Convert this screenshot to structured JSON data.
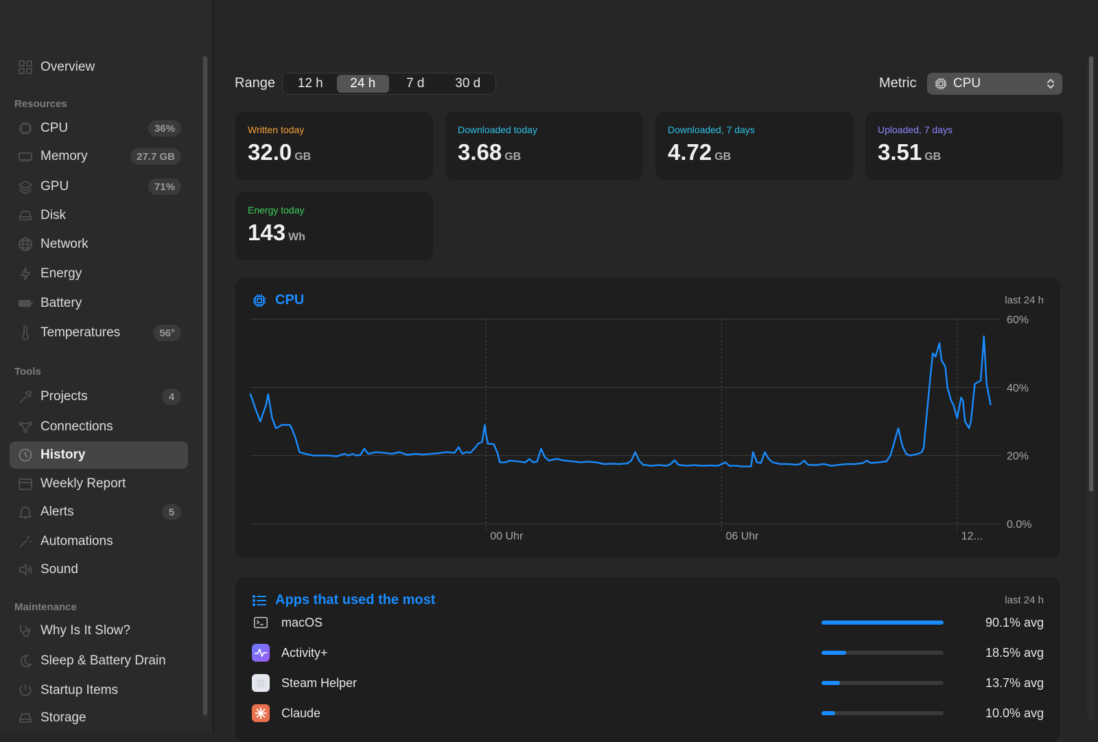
{
  "sidebar": {
    "items": [
      {
        "label": "Overview",
        "badge": "",
        "icon": "overview-icon"
      },
      {
        "label": "CPU",
        "badge": "36%",
        "icon": "cpu-icon"
      },
      {
        "label": "Memory",
        "badge": "27.7 GB",
        "icon": "memory-icon"
      },
      {
        "label": "GPU",
        "badge": "71%",
        "icon": "gpu-icon"
      },
      {
        "label": "Disk",
        "badge": "",
        "icon": "disk-icon"
      },
      {
        "label": "Network",
        "badge": "",
        "icon": "globe-icon"
      },
      {
        "label": "Energy",
        "badge": "",
        "icon": "bolt-icon"
      },
      {
        "label": "Battery",
        "badge": "",
        "icon": "battery-icon"
      },
      {
        "label": "Temperatures",
        "badge": "56°",
        "icon": "thermometer-icon"
      },
      {
        "label": "Projects",
        "badge": "4",
        "icon": "hammer-icon"
      },
      {
        "label": "Connections",
        "badge": "",
        "icon": "connections-icon"
      },
      {
        "label": "History",
        "badge": "",
        "icon": "clock-icon"
      },
      {
        "label": "Weekly Report",
        "badge": "",
        "icon": "calendar-icon"
      },
      {
        "label": "Alerts",
        "badge": "5",
        "icon": "bell-icon"
      },
      {
        "label": "Automations",
        "badge": "",
        "icon": "wand-icon"
      },
      {
        "label": "Sound",
        "badge": "",
        "icon": "speaker-icon"
      },
      {
        "label": "Why Is It Slow?",
        "badge": "",
        "icon": "stethoscope-icon"
      },
      {
        "label": "Sleep & Battery Drain",
        "badge": "",
        "icon": "moon-icon"
      },
      {
        "label": "Startup Items",
        "badge": "",
        "icon": "power-icon"
      },
      {
        "label": "Storage",
        "badge": "",
        "icon": "storage-icon"
      }
    ],
    "sections": {
      "resources": "Resources",
      "tools": "Tools",
      "maintenance": "Maintenance"
    },
    "selected": "History"
  },
  "toolbar": {
    "range_label": "Range",
    "range_options": [
      "12 h",
      "24 h",
      "7 d",
      "30 d"
    ],
    "range_selected": "24 h",
    "metric_label": "Metric",
    "metric_value": "CPU"
  },
  "stats": [
    {
      "title": "Written today",
      "value": "32.0",
      "unit": "GB",
      "color": "#f5a23c"
    },
    {
      "title": "Downloaded today",
      "value": "3.68",
      "unit": "GB",
      "color": "#2fc3e8"
    },
    {
      "title": "Downloaded, 7 days",
      "value": "4.72",
      "unit": "GB",
      "color": "#2fc3e8"
    },
    {
      "title": "Uploaded, 7 days",
      "value": "3.51",
      "unit": "GB",
      "color": "#8f86ff"
    },
    {
      "title": "Energy today",
      "value": "143",
      "unit": "Wh",
      "color": "#3ecf5e"
    }
  ],
  "cpu_panel": {
    "title": "CPU",
    "subtitle": "last 24 h"
  },
  "chart_data": {
    "type": "line",
    "title": "CPU",
    "ylim": [
      0,
      60
    ],
    "y_ticks": [
      "60%",
      "40%",
      "20%",
      "0.0%"
    ],
    "x_ticks": [
      {
        "label": "00 Uhr",
        "hour": 6
      },
      {
        "label": "06 Uhr",
        "hour": 12
      },
      {
        "label": "12...",
        "hour": 18
      }
    ],
    "x_range_hours": [
      0,
      19
    ],
    "grid": true,
    "series": [
      {
        "color": "#1a8cff",
        "points": [
          [
            0.0,
            38
          ],
          [
            0.15,
            33
          ],
          [
            0.25,
            30
          ],
          [
            0.4,
            35
          ],
          [
            0.45,
            38
          ],
          [
            0.55,
            31
          ],
          [
            0.65,
            28
          ],
          [
            0.8,
            29
          ],
          [
            1.0,
            29
          ],
          [
            1.05,
            28
          ],
          [
            1.15,
            25
          ],
          [
            1.25,
            21
          ],
          [
            1.4,
            20.5
          ],
          [
            1.6,
            20
          ],
          [
            1.8,
            20
          ],
          [
            2.0,
            20
          ],
          [
            2.2,
            19.8
          ],
          [
            2.4,
            20.5
          ],
          [
            2.5,
            20
          ],
          [
            2.6,
            20.5
          ],
          [
            2.7,
            20
          ],
          [
            2.8,
            20.2
          ],
          [
            2.9,
            22
          ],
          [
            3.0,
            20.5
          ],
          [
            3.2,
            21
          ],
          [
            3.4,
            20.8
          ],
          [
            3.6,
            20.5
          ],
          [
            3.8,
            21
          ],
          [
            4.0,
            20.2
          ],
          [
            4.2,
            20.5
          ],
          [
            4.4,
            20.3
          ],
          [
            4.6,
            20.5
          ],
          [
            4.8,
            20.7
          ],
          [
            5.0,
            21
          ],
          [
            5.2,
            20.8
          ],
          [
            5.3,
            22.5
          ],
          [
            5.4,
            20.5
          ],
          [
            5.5,
            21
          ],
          [
            5.6,
            20.8
          ],
          [
            5.7,
            22
          ],
          [
            5.8,
            23.5
          ],
          [
            5.9,
            24
          ],
          [
            5.97,
            29
          ],
          [
            6.0,
            26
          ],
          [
            6.05,
            23.5
          ],
          [
            6.2,
            23.3
          ],
          [
            6.3,
            20.5
          ],
          [
            6.35,
            18
          ],
          [
            6.5,
            18
          ],
          [
            6.6,
            18.5
          ],
          [
            6.8,
            18.3
          ],
          [
            7.0,
            18
          ],
          [
            7.1,
            19
          ],
          [
            7.2,
            18
          ],
          [
            7.3,
            18.2
          ],
          [
            7.4,
            22
          ],
          [
            7.5,
            19.5
          ],
          [
            7.6,
            18.5
          ],
          [
            7.8,
            19
          ],
          [
            8.0,
            18.5
          ],
          [
            8.2,
            18.3
          ],
          [
            8.4,
            18
          ],
          [
            8.6,
            18.2
          ],
          [
            8.8,
            18
          ],
          [
            9.0,
            17.5
          ],
          [
            9.2,
            17.6
          ],
          [
            9.4,
            17.5
          ],
          [
            9.6,
            17.7
          ],
          [
            9.7,
            18.5
          ],
          [
            9.8,
            21
          ],
          [
            9.9,
            18.5
          ],
          [
            10.0,
            17.3
          ],
          [
            10.2,
            17
          ],
          [
            10.4,
            17.2
          ],
          [
            10.6,
            17
          ],
          [
            10.7,
            17.5
          ],
          [
            10.8,
            18.6
          ],
          [
            10.9,
            17.3
          ],
          [
            11.1,
            17
          ],
          [
            11.3,
            17.2
          ],
          [
            11.5,
            17
          ],
          [
            11.7,
            17.1
          ],
          [
            11.9,
            17
          ],
          [
            12.0,
            17.5
          ],
          [
            12.1,
            18
          ],
          [
            12.2,
            17
          ],
          [
            12.4,
            17
          ],
          [
            12.5,
            16.8
          ],
          [
            12.6,
            16.8
          ],
          [
            12.75,
            16.8
          ],
          [
            12.8,
            21
          ],
          [
            12.9,
            18
          ],
          [
            13.0,
            17.8
          ],
          [
            13.1,
            21
          ],
          [
            13.2,
            19
          ],
          [
            13.3,
            18
          ],
          [
            13.5,
            17.5
          ],
          [
            13.7,
            17.5
          ],
          [
            13.9,
            17.3
          ],
          [
            14.0,
            17.5
          ],
          [
            14.1,
            18.5
          ],
          [
            14.2,
            17.3
          ],
          [
            14.4,
            17.2
          ],
          [
            14.6,
            17.5
          ],
          [
            14.8,
            17
          ],
          [
            15.0,
            17.3
          ],
          [
            15.2,
            17.5
          ],
          [
            15.4,
            17.5
          ],
          [
            15.6,
            17.8
          ],
          [
            15.7,
            18.5
          ],
          [
            15.8,
            17.8
          ],
          [
            16.0,
            18
          ],
          [
            16.2,
            18.3
          ],
          [
            16.3,
            20
          ],
          [
            16.4,
            24
          ],
          [
            16.5,
            28
          ],
          [
            16.6,
            23
          ],
          [
            16.7,
            20.5
          ],
          [
            16.8,
            20
          ],
          [
            17.0,
            20.5
          ],
          [
            17.1,
            21
          ],
          [
            17.15,
            22.5
          ],
          [
            17.2,
            29
          ],
          [
            17.3,
            41
          ],
          [
            17.38,
            50
          ],
          [
            17.45,
            49
          ],
          [
            17.55,
            53
          ],
          [
            17.6,
            48
          ],
          [
            17.7,
            46
          ],
          [
            17.75,
            40
          ],
          [
            17.85,
            36
          ],
          [
            17.9,
            35
          ],
          [
            18.0,
            31
          ],
          [
            18.1,
            37
          ],
          [
            18.15,
            36
          ],
          [
            18.2,
            30
          ],
          [
            18.3,
            28
          ],
          [
            18.35,
            30
          ],
          [
            18.45,
            41
          ],
          [
            18.6,
            42
          ],
          [
            18.65,
            50
          ],
          [
            18.68,
            55
          ],
          [
            18.75,
            41
          ],
          [
            18.85,
            35
          ]
        ]
      }
    ]
  },
  "apps_panel": {
    "title": "Apps that used the most",
    "subtitle": "last 24 h",
    "apps": [
      {
        "name": "macOS",
        "value": "90.1% avg",
        "fraction": 1.0,
        "icon": "terminal-icon"
      },
      {
        "name": "Activity+",
        "value": "18.5% avg",
        "fraction": 0.205,
        "icon": "activity-icon"
      },
      {
        "name": "Steam Helper",
        "value": "13.7% avg",
        "fraction": 0.152,
        "icon": "steam-helper-icon"
      },
      {
        "name": "Claude",
        "value": "10.0% avg",
        "fraction": 0.111,
        "icon": "claude-icon"
      }
    ]
  },
  "colors": {
    "accent": "#1a8cff",
    "background": "#262626",
    "card": "#1e1e1e"
  }
}
